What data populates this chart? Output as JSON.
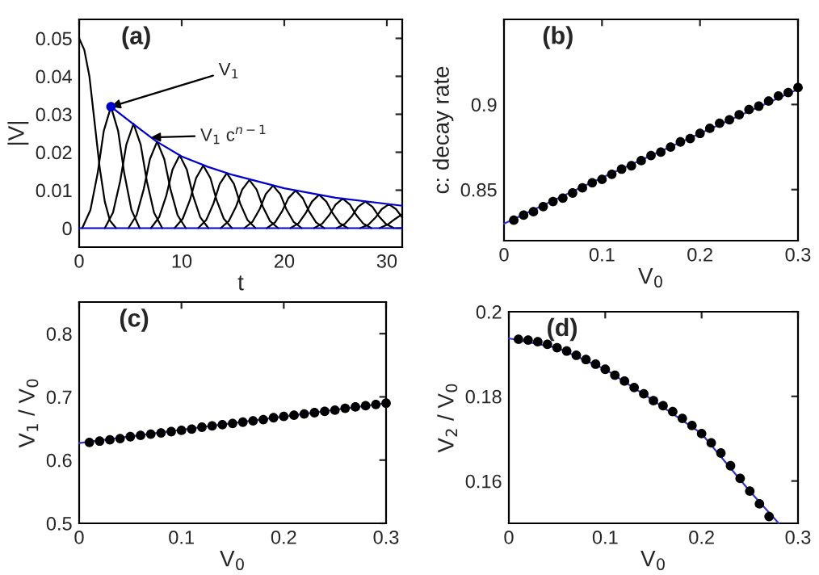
{
  "chart_data": [
    {
      "type": "line",
      "xlabel": "t",
      "ylabel": "|V|",
      "xlim": [
        0,
        31.5
      ],
      "ylim": [
        -0.005,
        0.055
      ],
      "xticks": [
        0,
        10,
        20,
        30
      ],
      "yticks": [
        0,
        0.01,
        0.02,
        0.03,
        0.04,
        0.05
      ],
      "grid": false,
      "annotations": [
        "(a)",
        {
          "text": "V$_{1}$",
          "x": 3.1,
          "y": 0.032
        },
        {
          "text": "V$_{1}$ c$^{n−1}$",
          "x": 7,
          "y": 0.0239
        }
      ],
      "series": [
        {
          "color": "#000000",
          "x": [
            0,
            0.5,
            1,
            1.5,
            2,
            2.5,
            3,
            3.6
          ],
          "values": [
            0.05,
            0.047,
            0.04,
            0.028,
            0.016,
            0.007,
            0.002,
            0
          ]
        },
        {
          "color": "#000000",
          "x": [
            0.3,
            1.1,
            1.8,
            2.4,
            3.1,
            3.8,
            4.4,
            5.1,
            5.9
          ],
          "values": [
            0,
            0.0048,
            0.0144,
            0.0256,
            0.032,
            0.0256,
            0.0144,
            0.0048,
            0
          ]
        },
        {
          "color": "#000000",
          "x": [
            2.5,
            3.3,
            4.0,
            4.6,
            5.3,
            6.0,
            6.6,
            7.3,
            8.1
          ],
          "values": [
            0,
            0.0041,
            0.0124,
            0.022,
            0.0275,
            0.022,
            0.0124,
            0.0041,
            0
          ]
        },
        {
          "color": "#000000",
          "x": [
            4.8,
            5.6,
            6.3,
            6.9,
            7.6,
            8.3,
            8.9,
            9.6,
            10.4
          ],
          "values": [
            0,
            0.0034,
            0.0103,
            0.0182,
            0.0228,
            0.0182,
            0.0103,
            0.0034,
            0
          ]
        },
        {
          "color": "#000000",
          "x": [
            7.0,
            7.8,
            8.5,
            9.1,
            9.8,
            10.5,
            11.1,
            11.8,
            12.6
          ],
          "values": [
            0,
            0.0029,
            0.0086,
            0.0154,
            0.0192,
            0.0154,
            0.0086,
            0.0029,
            0
          ]
        },
        {
          "color": "#000000",
          "x": [
            9.3,
            10.1,
            10.8,
            11.4,
            12.1,
            12.8,
            13.4,
            14.1,
            14.9
          ],
          "values": [
            0,
            0.0025,
            0.0074,
            0.0132,
            0.0165,
            0.0132,
            0.0074,
            0.0025,
            0
          ]
        },
        {
          "color": "#000000",
          "x": [
            11.6,
            12.4,
            13.1,
            13.7,
            14.4,
            15.1,
            15.7,
            16.4,
            17.2
          ],
          "values": [
            0,
            0.0022,
            0.0065,
            0.0116,
            0.0145,
            0.0116,
            0.0065,
            0.0022,
            0
          ]
        },
        {
          "color": "#000000",
          "x": [
            13.8,
            14.6,
            15.3,
            15.9,
            16.6,
            17.3,
            17.9,
            18.6,
            19.4
          ],
          "values": [
            0,
            0.0019,
            0.0057,
            0.0102,
            0.0127,
            0.0102,
            0.0057,
            0.0019,
            0
          ]
        },
        {
          "color": "#000000",
          "x": [
            16.1,
            16.9,
            17.6,
            18.2,
            18.9,
            19.6,
            20.2,
            20.9,
            21.7
          ],
          "values": [
            0,
            0.0017,
            0.005,
            0.009,
            0.0112,
            0.009,
            0.005,
            0.0017,
            0
          ]
        },
        {
          "color": "#000000",
          "x": [
            18.3,
            19.1,
            19.8,
            20.4,
            21.1,
            21.8,
            22.4,
            23.1,
            23.9
          ],
          "values": [
            0,
            0.0015,
            0.0045,
            0.0079,
            0.0099,
            0.0079,
            0.0045,
            0.0015,
            0
          ]
        },
        {
          "color": "#000000",
          "x": [
            20.6,
            21.4,
            22.1,
            22.7,
            23.4,
            24.1,
            24.7,
            25.4,
            26.2
          ],
          "values": [
            0,
            0.0013,
            0.004,
            0.007,
            0.0088,
            0.007,
            0.004,
            0.0013,
            0
          ]
        },
        {
          "color": "#000000",
          "x": [
            22.9,
            23.7,
            24.4,
            25.0,
            25.7,
            26.4,
            27.0,
            27.7,
            28.5
          ],
          "values": [
            0,
            0.0012,
            0.0035,
            0.0062,
            0.0078,
            0.0062,
            0.0035,
            0.0012,
            0
          ]
        },
        {
          "color": "#000000",
          "x": [
            25.1,
            25.9,
            26.6,
            27.2,
            27.9,
            28.6,
            29.2,
            29.9,
            30.7
          ],
          "values": [
            0,
            0.0011,
            0.0032,
            0.0056,
            0.007,
            0.0056,
            0.0032,
            0.0011,
            0
          ]
        },
        {
          "color": "#000000",
          "x": [
            27.4,
            28.2,
            28.9,
            29.5,
            30.2,
            30.9,
            31.5
          ],
          "values": [
            0,
            0.0009,
            0.0028,
            0.005,
            0.0063,
            0.005,
            0.0028
          ]
        },
        {
          "color": "#000000",
          "x": [
            29.3,
            30.1,
            30.8,
            31.5
          ],
          "values": [
            0,
            0.001,
            0.0024,
            0.0037
          ]
        },
        {
          "color": "#0000cc",
          "x": [
            3.1,
            5,
            7.5,
            10,
            12.5,
            15,
            20,
            25,
            31.5
          ],
          "values": [
            0.032,
            0.028,
            0.0229,
            0.0189,
            0.0162,
            0.014,
            0.0105,
            0.008,
            0.0059
          ]
        },
        {
          "color": "#0000cc",
          "x": [
            0,
            31.5
          ],
          "values": [
            0,
            0
          ]
        },
        {
          "type": "scatter",
          "color": "#0000cc",
          "marker": "circle",
          "x": [
            3.1
          ],
          "values": [
            0.032
          ]
        }
      ]
    },
    {
      "type": "line",
      "xlabel": "V$_{0}$",
      "ylabel": "c: decay rate",
      "xlim": [
        0,
        0.3
      ],
      "ylim": [
        0.82,
        0.95
      ],
      "xticks": [
        0,
        0.1,
        0.2,
        0.3
      ],
      "yticks": [
        0.85,
        0.9
      ],
      "grid": false,
      "annotations": [
        "(b)"
      ],
      "series": [
        {
          "color": "#3333cc",
          "x": [
            0,
            0.1,
            0.2,
            0.3
          ],
          "values": [
            0.83,
            0.857,
            0.883,
            0.909
          ]
        },
        {
          "type": "scatter",
          "color": "#000000",
          "marker": "circle",
          "x": [
            0.01,
            0.02,
            0.03,
            0.04,
            0.05,
            0.06,
            0.07,
            0.08,
            0.09,
            0.1,
            0.11,
            0.12,
            0.13,
            0.14,
            0.15,
            0.16,
            0.17,
            0.18,
            0.19,
            0.2,
            0.21,
            0.22,
            0.23,
            0.24,
            0.25,
            0.26,
            0.27,
            0.28,
            0.29,
            0.3
          ],
          "values": [
            0.832,
            0.835,
            0.837,
            0.84,
            0.843,
            0.845,
            0.848,
            0.851,
            0.854,
            0.856,
            0.859,
            0.862,
            0.864,
            0.867,
            0.87,
            0.872,
            0.875,
            0.878,
            0.88,
            0.883,
            0.886,
            0.889,
            0.891,
            0.894,
            0.897,
            0.899,
            0.902,
            0.905,
            0.907,
            0.91
          ]
        }
      ]
    },
    {
      "type": "line",
      "xlabel": "V$_{0}$",
      "ylabel": "V$_{1}$ / V$_{0}$",
      "xlim": [
        0,
        0.3
      ],
      "ylim": [
        0.5,
        0.85
      ],
      "xticks": [
        0,
        0.1,
        0.2,
        0.3
      ],
      "yticks": [
        0.5,
        0.6,
        0.7,
        0.8
      ],
      "grid": false,
      "annotations": [
        "(c)"
      ],
      "series": [
        {
          "color": "#3333cc",
          "x": [
            0,
            0.3
          ],
          "values": [
            0.627,
            0.69
          ]
        },
        {
          "type": "scatter",
          "color": "#000000",
          "marker": "circle",
          "x": [
            0.01,
            0.02,
            0.03,
            0.04,
            0.05,
            0.06,
            0.07,
            0.08,
            0.09,
            0.1,
            0.11,
            0.12,
            0.13,
            0.14,
            0.15,
            0.16,
            0.17,
            0.18,
            0.19,
            0.2,
            0.21,
            0.22,
            0.23,
            0.24,
            0.25,
            0.26,
            0.27,
            0.28,
            0.29,
            0.3
          ],
          "values": [
            0.628,
            0.63,
            0.632,
            0.634,
            0.637,
            0.639,
            0.641,
            0.643,
            0.645,
            0.647,
            0.649,
            0.652,
            0.654,
            0.656,
            0.658,
            0.66,
            0.662,
            0.664,
            0.667,
            0.669,
            0.671,
            0.673,
            0.675,
            0.677,
            0.679,
            0.682,
            0.684,
            0.686,
            0.688,
            0.69
          ]
        }
      ]
    },
    {
      "type": "line",
      "xlabel": "V$_{0}$",
      "ylabel": "V$_{2}$ / V$_{0}$",
      "xlim": [
        0,
        0.3
      ],
      "ylim": [
        0.15,
        0.2
      ],
      "xticks": [
        0,
        0.1,
        0.2,
        0.3
      ],
      "yticks": [
        0.16,
        0.18,
        0.2
      ],
      "grid": false,
      "annotations": [
        "(d)"
      ],
      "series": [
        {
          "color": "#3333cc",
          "x": [
            0,
            0.05,
            0.1,
            0.15,
            0.2,
            0.25,
            0.28
          ],
          "values": [
            0.1937,
            0.1915,
            0.1864,
            0.179,
            0.1712,
            0.1576,
            0.15
          ]
        },
        {
          "type": "scatter",
          "color": "#000000",
          "marker": "circle",
          "x": [
            0.01,
            0.02,
            0.03,
            0.04,
            0.05,
            0.06,
            0.07,
            0.08,
            0.09,
            0.1,
            0.11,
            0.12,
            0.13,
            0.14,
            0.15,
            0.16,
            0.17,
            0.18,
            0.19,
            0.2,
            0.21,
            0.22,
            0.23,
            0.24,
            0.25,
            0.26,
            0.27
          ],
          "values": [
            0.1935,
            0.1933,
            0.1929,
            0.1923,
            0.1915,
            0.1907,
            0.1897,
            0.1887,
            0.1876,
            0.1864,
            0.185,
            0.1836,
            0.1821,
            0.1806,
            0.179,
            0.1778,
            0.1764,
            0.1748,
            0.1731,
            0.1712,
            0.169,
            0.1666,
            0.1636,
            0.1606,
            0.1576,
            0.1546,
            0.1516
          ]
        }
      ]
    }
  ]
}
